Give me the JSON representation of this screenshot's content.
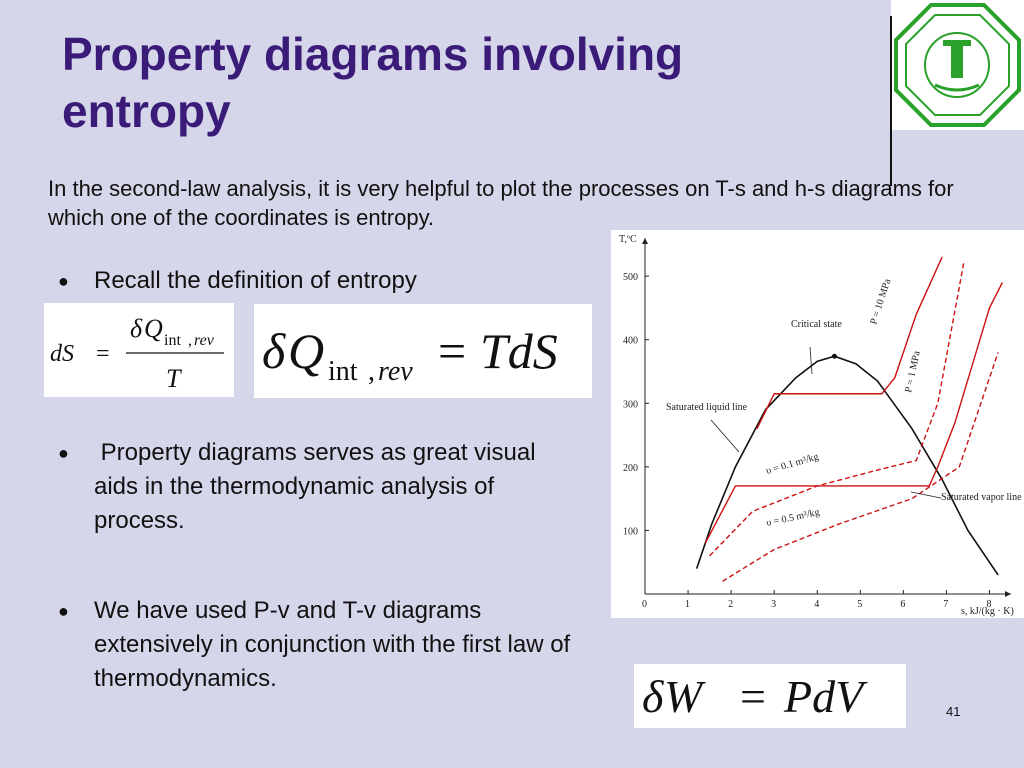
{
  "slide": {
    "title": "Property diagrams involving entropy",
    "intro": "In the second-law analysis, it is very helpful to plot the processes on T-s and h-s diagrams for which one of the coordinates is entropy.",
    "bullets": [
      "Recall the definition of entropy",
      "Property diagrams serves as great visual aids in the thermodynamic analysis of process.",
      "We have used P-v and T-v diagrams extensively in conjunction with the first law of thermodynamics."
    ],
    "page_number": "41",
    "logo_icon": "university-seal-icon",
    "bullet_icon": "bullet-dot-icon"
  },
  "equations": {
    "eq1": {
      "lhs": "dS",
      "equals": "=",
      "num_delta": "δ",
      "num_var": "Q",
      "sub_int": "int",
      "sub_comma": ",",
      "sub_rev": "rev",
      "den": "T"
    },
    "eq2": {
      "delta": "δ",
      "var": "Q",
      "sub_int": "int",
      "sub_comma": ",",
      "sub_rev": "rev",
      "equals": "=",
      "rhs": "TdS"
    },
    "eq3": {
      "delta": "δ",
      "var": "W",
      "equals": "=",
      "rhs": "PdV"
    }
  },
  "chart_data": {
    "type": "line",
    "ylabel": "T,ºC",
    "xlabel": "s, kJ/(kg · K)",
    "xlim": [
      0,
      8.5
    ],
    "ylim": [
      0,
      560
    ],
    "x_ticks": [
      0,
      1,
      2,
      3,
      4,
      5,
      6,
      7,
      8
    ],
    "y_ticks": [
      100,
      200,
      300,
      400,
      500
    ],
    "annotations": {
      "critical": "Critical state",
      "sat_liquid": "Saturated liquid line",
      "sat_vapor": "Saturated vapor line",
      "p10": "P = 10 MPa",
      "p1": "P = 1 MPa",
      "v01": "υ = 0.1 m³/kg",
      "v05": "υ = 0.5 m³/kg"
    },
    "series": [
      {
        "kind": "dome",
        "color": "#111111",
        "points": [
          [
            1.2,
            40
          ],
          [
            1.55,
            110
          ],
          [
            2.1,
            200
          ],
          [
            2.8,
            290
          ],
          [
            3.5,
            340
          ],
          [
            4.0,
            366
          ],
          [
            4.4,
            374
          ],
          [
            4.9,
            362
          ],
          [
            5.4,
            335
          ],
          [
            6.2,
            260
          ],
          [
            6.9,
            180
          ],
          [
            7.5,
            100
          ],
          [
            8.2,
            30
          ]
        ]
      },
      {
        "kind": "isobar",
        "color": "#cc1111",
        "points": [
          [
            2.6,
            260
          ],
          [
            3.0,
            315
          ],
          [
            5.5,
            315
          ],
          [
            5.8,
            340
          ],
          [
            6.3,
            440
          ],
          [
            6.9,
            530
          ]
        ]
      },
      {
        "kind": "isobar",
        "color": "#cc1111",
        "points": [
          [
            1.4,
            80
          ],
          [
            2.1,
            170
          ],
          [
            6.6,
            170
          ],
          [
            6.8,
            200
          ],
          [
            7.2,
            270
          ],
          [
            7.6,
            360
          ],
          [
            8.0,
            450
          ],
          [
            8.3,
            490
          ]
        ]
      },
      {
        "kind": "isochore",
        "color": "#cc1111",
        "dashed": true,
        "points": [
          [
            1.5,
            60
          ],
          [
            2.5,
            130
          ],
          [
            4.0,
            170
          ],
          [
            5.4,
            195
          ],
          [
            6.3,
            210
          ],
          [
            6.8,
            300
          ],
          [
            7.4,
            520
          ]
        ]
      },
      {
        "kind": "isochore",
        "color": "#cc1111",
        "dashed": true,
        "points": [
          [
            1.8,
            20
          ],
          [
            3.0,
            70
          ],
          [
            4.5,
            110
          ],
          [
            6.2,
            150
          ],
          [
            7.3,
            200
          ],
          [
            7.8,
            300
          ],
          [
            8.2,
            380
          ]
        ]
      }
    ]
  }
}
